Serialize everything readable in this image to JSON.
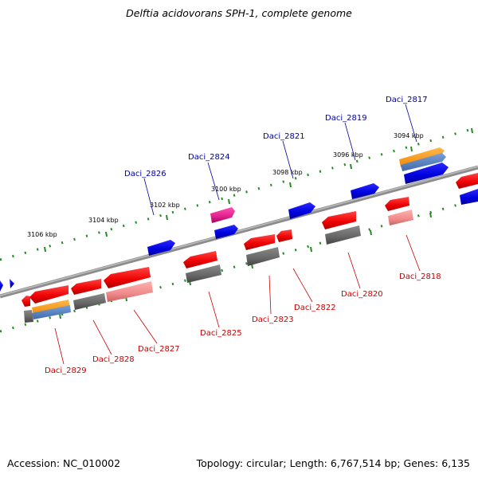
{
  "title": "Delftia acidovorans SPH-1, complete genome",
  "footer": {
    "accession": "Accession: NC_010002",
    "summary": "Topology: circular; Length: 6,767,514 bp; Genes: 6,135"
  },
  "scale_labels": [
    "3106 kbp",
    "3104 kbp",
    "3102 kbp",
    "3100 kbp",
    "3098 kbp",
    "3096 kbp",
    "3094 kbp"
  ],
  "gene_labels_top": [
    "Daci_2826",
    "Daci_2824",
    "Daci_2821",
    "Daci_2819",
    "Daci_2817"
  ],
  "gene_labels_bottom": [
    "Daci_2829",
    "Daci_2828",
    "Daci_2827",
    "Daci_2825",
    "Daci_2823",
    "Daci_2822",
    "Daci_2820",
    "Daci_2818"
  ],
  "colors": {
    "forward_gene": "#0000dd",
    "reverse_gene": "#ee0000",
    "reverse_gene_light": "#f08a8a",
    "magenta_gene": "#e0208c",
    "grey_feature": "#666666",
    "orange_feature": "#ff9900",
    "blue_feature": "#4f7fbf",
    "backbone": "#8c8c8c",
    "tick": "#228B22",
    "top_label": "#000099",
    "bottom_label": "#cc0000"
  }
}
